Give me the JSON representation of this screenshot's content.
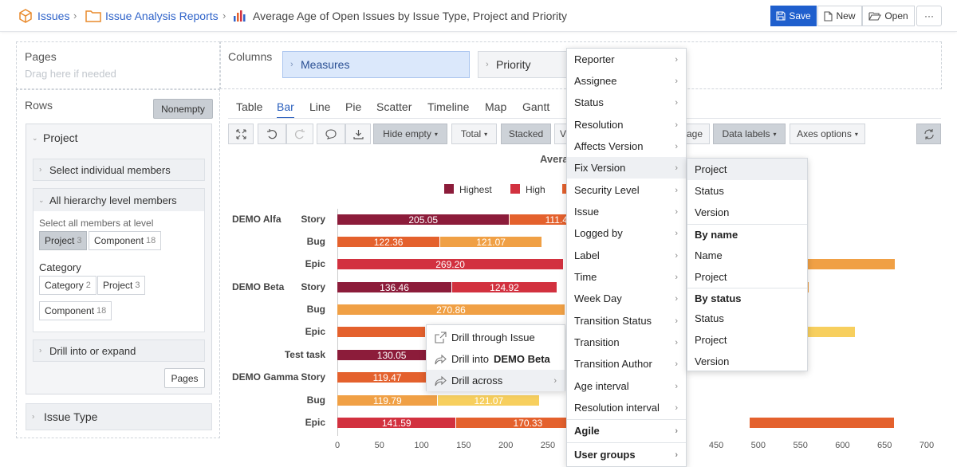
{
  "breadcrumb": {
    "root": "Issues",
    "folder": "Issue Analysis Reports",
    "report": "Average Age of Open Issues by Issue Type, Project and Priority"
  },
  "toolbar": {
    "save": "Save",
    "new": "New",
    "open": "Open",
    "more": "···"
  },
  "pages": {
    "title": "Pages",
    "placeholder": "Drag here if needed"
  },
  "columns": {
    "title": "Columns",
    "measures": "Measures",
    "priority": "Priority"
  },
  "rows": {
    "title": "Rows",
    "nonempty": "Nonempty",
    "project_header": "Project",
    "select_individual": "Select individual members",
    "all_levels": "All hierarchy level members",
    "select_all_at_level": "Select all members at level",
    "level_chips": [
      {
        "label": "Project",
        "count": "3"
      },
      {
        "label": "Component",
        "count": "18"
      }
    ],
    "category_title": "Category",
    "category_chips": [
      {
        "label": "Category",
        "count": "2"
      },
      {
        "label": "Project",
        "count": "3"
      },
      {
        "label": "Component",
        "count": "18"
      }
    ],
    "drill_into": "Drill into or expand",
    "pages_btn": "Pages",
    "issue_type": "Issue Type"
  },
  "tabs": [
    "Table",
    "Bar",
    "Line",
    "Pie",
    "Scatter",
    "Timeline",
    "Map",
    "Gantt"
  ],
  "chart_tools": {
    "hide_empty": "Hide empty",
    "total": "Total",
    "stacked": "Stacked",
    "stacked_next": "V",
    "age": "age",
    "data_labels": "Data labels",
    "axes_options": "Axes options"
  },
  "chart_data": {
    "type": "bar",
    "orientation": "horizontal",
    "stacked": true,
    "title": "Avera",
    "legend": [
      "Highest",
      "High",
      ""
    ],
    "rows": [
      {
        "project": "DEMO Alfa",
        "issue_type": "Story",
        "segments": [
          {
            "priority": "Highest",
            "value": 205.05,
            "label": "205.05"
          },
          {
            "priority": "High",
            "value": 0,
            "label": ""
          },
          {
            "priority": "Medium",
            "value": 111.4,
            "label": "111.4"
          }
        ]
      },
      {
        "project": "",
        "issue_type": "Bug",
        "segments": [
          {
            "priority": "Medium",
            "value": 122.36,
            "label": "122.36"
          },
          {
            "priority": "Low",
            "value": 121.07,
            "label": "121.07"
          },
          {
            "priority": "Lowest",
            "value": 0,
            "label": ""
          }
        ]
      },
      {
        "project": "",
        "issue_type": "Epic",
        "segments": [
          {
            "priority": "High",
            "value": 269.2,
            "label": "269.20"
          },
          {
            "priority": "Low",
            "value": 0,
            "label": ""
          }
        ]
      },
      {
        "project": "DEMO Beta",
        "issue_type": "Story",
        "segments": [
          {
            "priority": "Highest",
            "value": 136.46,
            "label": "136.46"
          },
          {
            "priority": "High",
            "value": 124.92,
            "label": "124.92"
          }
        ]
      },
      {
        "project": "",
        "issue_type": "Bug",
        "segments": [
          {
            "priority": "Low",
            "value": 270.86,
            "label": "270.86"
          }
        ]
      },
      {
        "project": "",
        "issue_type": "Epic",
        "segments": [
          {
            "priority": "Medium",
            "value": 0,
            "label": ""
          },
          {
            "priority": "Lowest",
            "value": 0,
            "label": ""
          }
        ]
      },
      {
        "project": "",
        "issue_type": "Test task",
        "segments": [
          {
            "priority": "Highest",
            "value": 130.05,
            "label": "130.05"
          }
        ]
      },
      {
        "project": "DEMO Gamma",
        "issue_type": "Story",
        "segments": [
          {
            "priority": "Medium",
            "value": 119.47,
            "label": "119.47"
          },
          {
            "priority": "Lowest",
            "value": 113.38,
            "label": "113.38"
          }
        ]
      },
      {
        "project": "",
        "issue_type": "Bug",
        "segments": [
          {
            "priority": "Low",
            "value": 119.79,
            "label": "119.79"
          },
          {
            "priority": "Lowest",
            "value": 121.07,
            "label": "121.07"
          }
        ]
      },
      {
        "project": "",
        "issue_type": "Epic",
        "segments": [
          {
            "priority": "High",
            "value": 141.59,
            "label": "141.59"
          },
          {
            "priority": "Highest",
            "value": 0,
            "label": ""
          },
          {
            "priority": "Medium",
            "value": 170.33,
            "label": "170.33"
          }
        ]
      }
    ],
    "x_ticks": [
      "0",
      "50",
      "100",
      "150",
      "200",
      "250",
      "300",
      "350",
      "400",
      "450",
      "500",
      "550",
      "600",
      "650",
      "700"
    ],
    "xlim": [
      0,
      700
    ],
    "colors": {
      "Highest": "#8c1c3a",
      "High": "#d2313f",
      "Medium": "#e4612d",
      "Low": "#f0a045",
      "Lowest": "#f7cf5e"
    }
  },
  "context_menu": {
    "items": [
      "Drill through Issue",
      "Drill into",
      "Drill across"
    ],
    "drill_into_target": "DEMO Beta"
  },
  "dimension_menu": {
    "items": [
      "Reporter",
      "Assignee",
      "Status",
      "Resolution",
      "Affects Version",
      "Fix Version",
      "Security Level",
      "Issue",
      "Logged by",
      "Label",
      "Time",
      "Week Day",
      "Transition Status",
      "Transition",
      "Transition Author",
      "Age interval",
      "Resolution interval",
      "Agile",
      "User groups"
    ]
  },
  "fix_version_menu": {
    "items": [
      "Project",
      "Status",
      "Version"
    ],
    "by_name": "By name",
    "by_name_items": [
      "Name",
      "Project"
    ],
    "by_status": "By status",
    "by_status_items": [
      "Status",
      "Project",
      "Version"
    ]
  }
}
